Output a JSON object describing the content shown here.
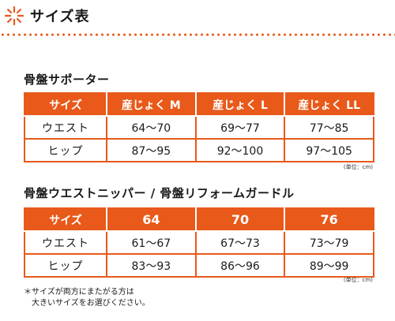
{
  "header": {
    "title": "サイズ表"
  },
  "table1": {
    "title": "骨盤サポーター",
    "columns": [
      "サイズ",
      "産じょく M",
      "産じょく L",
      "産じょく LL"
    ],
    "rows": [
      [
        "ウエスト",
        "64～70",
        "69～77",
        "77～85"
      ],
      [
        "ヒップ",
        "87～95",
        "92～100",
        "97～105"
      ]
    ],
    "unit": "(単位：cm)"
  },
  "table2": {
    "title": "骨盤ウエストニッパー / 骨盤リフォームガードル",
    "columns": [
      "サイズ",
      "64",
      "70",
      "76"
    ],
    "rows": [
      [
        "ウエスト",
        "61～67",
        "67～73",
        "73～79"
      ],
      [
        "ヒップ",
        "83～93",
        "86～96",
        "89～99"
      ]
    ],
    "unit": "(単位：cm)"
  },
  "note": {
    "line1": "＊サイズが両方にまたがる方は",
    "line2": "大きいサイズをお選びください。"
  },
  "colors": {
    "accent": "#e8591a"
  },
  "icons": {
    "header": "starburst-icon"
  }
}
